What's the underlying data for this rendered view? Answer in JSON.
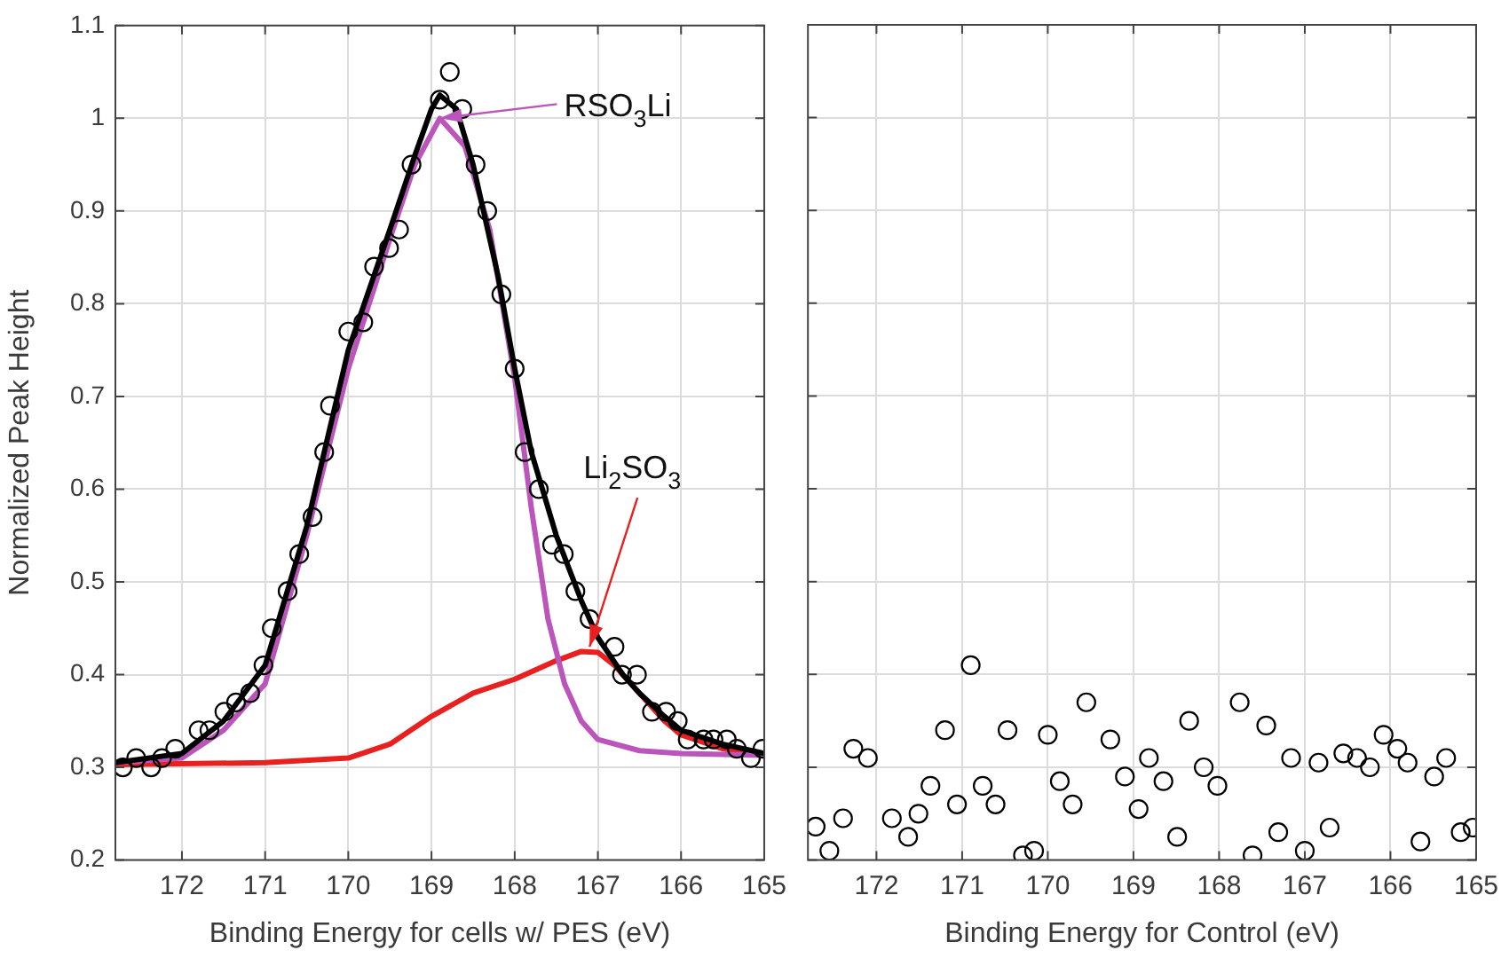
{
  "chart_data": [
    {
      "type": "scatter",
      "xlabel": "Binding Energy for cells w/ PES (eV)",
      "ylabel": "Normalized Peak Height",
      "xlim": [
        172.8,
        165
      ],
      "xticks": [
        172,
        171,
        170,
        169,
        168,
        167,
        166,
        165
      ],
      "ylim": [
        0.2,
        1.1
      ],
      "yticks": [
        0.2,
        0.3,
        0.4,
        0.5,
        0.6,
        0.7,
        0.8,
        0.9,
        1,
        1.1
      ],
      "grid": true,
      "annotations": [
        {
          "text": "RSO$_{3}$Li",
          "x": 168.9,
          "y": 1.0
        },
        {
          "text": "Li$_{2}$SO$_{3}$",
          "x": 167.1,
          "y": 0.43
        }
      ],
      "series": [
        {
          "type": "scatter",
          "marker": "circle",
          "color": "#000000",
          "x": [
            172.71,
            172.55,
            172.37,
            172.24,
            172.08,
            171.8,
            171.67,
            171.49,
            171.35,
            171.18,
            171.02,
            170.92,
            170.73,
            170.59,
            170.43,
            170.29,
            170.22,
            170.0,
            169.82,
            169.69,
            169.51,
            169.39,
            169.24,
            168.9,
            168.78,
            168.63,
            168.47,
            168.33,
            168.16,
            168.0,
            167.88,
            167.71,
            167.55,
            167.41,
            167.27,
            167.1,
            166.8,
            166.71,
            166.53,
            166.35,
            166.18,
            166.04,
            165.92,
            165.73,
            165.61,
            165.45,
            165.33,
            165.16,
            165.02
          ],
          "values": [
            0.3,
            0.31,
            0.3,
            0.31,
            0.32,
            0.34,
            0.34,
            0.36,
            0.37,
            0.38,
            0.41,
            0.45,
            0.49,
            0.53,
            0.57,
            0.64,
            0.69,
            0.77,
            0.78,
            0.84,
            0.86,
            0.88,
            0.95,
            1.02,
            1.05,
            1.01,
            0.95,
            0.9,
            0.81,
            0.73,
            0.64,
            0.6,
            0.54,
            0.53,
            0.49,
            0.46,
            0.43,
            0.4,
            0.4,
            0.36,
            0.36,
            0.35,
            0.33,
            0.33,
            0.33,
            0.33,
            0.32,
            0.31,
            0.32
          ]
        },
        {
          "type": "line",
          "marker": "none",
          "color": "#000000",
          "x": [
            172.8,
            172,
            171.5,
            171,
            170.5,
            170,
            169.5,
            169.2,
            169,
            168.9,
            168.7,
            168.5,
            168.2,
            168,
            167.8,
            167.5,
            167.2,
            167,
            166.7,
            166.5,
            166.2,
            166,
            165.5,
            165
          ],
          "values": [
            0.305,
            0.315,
            0.35,
            0.41,
            0.56,
            0.75,
            0.88,
            0.96,
            1.01,
            1.025,
            1.01,
            0.95,
            0.83,
            0.73,
            0.64,
            0.55,
            0.48,
            0.44,
            0.4,
            0.38,
            0.355,
            0.34,
            0.325,
            0.315
          ]
        },
        {
          "type": "line",
          "marker": "none",
          "color": "#bb55bb",
          "x": [
            172.8,
            172,
            171.5,
            171,
            170.5,
            170,
            169.5,
            169.2,
            168.9,
            168.6,
            168.3,
            168,
            167.8,
            167.6,
            167.4,
            167.2,
            167,
            166.5,
            166,
            165
          ],
          "values": [
            0.305,
            0.31,
            0.34,
            0.39,
            0.55,
            0.73,
            0.87,
            0.95,
            1.0,
            0.97,
            0.88,
            0.72,
            0.58,
            0.46,
            0.39,
            0.35,
            0.33,
            0.318,
            0.315,
            0.313
          ]
        },
        {
          "type": "line",
          "marker": "none",
          "color": "#e82020",
          "x": [
            172.8,
            171,
            170,
            169.5,
            169,
            168.5,
            168,
            167.5,
            167.2,
            167,
            166.8,
            166.5,
            166.2,
            166,
            165.5,
            165
          ],
          "values": [
            0.303,
            0.305,
            0.31,
            0.325,
            0.355,
            0.38,
            0.395,
            0.415,
            0.425,
            0.424,
            0.41,
            0.38,
            0.35,
            0.335,
            0.32,
            0.313
          ]
        }
      ]
    },
    {
      "type": "scatter",
      "xlabel": "Binding Energy for Control (eV)",
      "xlim": [
        172.8,
        165
      ],
      "xticks": [
        172,
        171,
        170,
        169,
        168,
        167,
        166,
        165
      ],
      "ylim": [
        0.2,
        1.1
      ],
      "yticks": [
        0.2,
        0.3,
        0.4,
        0.5,
        0.6,
        0.7,
        0.8,
        0.9,
        1,
        1.1
      ],
      "grid": true,
      "tick_labels": "x",
      "series": [
        {
          "type": "scatter",
          "marker": "circle",
          "color": "#000000",
          "x": [
            172.71,
            172.55,
            172.39,
            172.27,
            172.1,
            171.82,
            171.63,
            171.51,
            171.37,
            171.2,
            171.06,
            170.9,
            170.76,
            170.61,
            170.47,
            170.29,
            170.16,
            170.0,
            169.86,
            169.71,
            169.55,
            169.27,
            169.1,
            168.94,
            168.82,
            168.65,
            168.49,
            168.35,
            168.18,
            168.02,
            167.76,
            167.61,
            167.45,
            167.31,
            167.16,
            167.0,
            166.84,
            166.71,
            166.55,
            166.39,
            166.24,
            166.08,
            165.92,
            165.8,
            165.65,
            165.49,
            165.35,
            165.18,
            165.04
          ],
          "values": [
            0.236,
            0.21,
            0.245,
            0.32,
            0.31,
            0.245,
            0.225,
            0.25,
            0.28,
            0.34,
            0.26,
            0.41,
            0.28,
            0.26,
            0.34,
            0.205,
            0.21,
            0.335,
            0.285,
            0.26,
            0.37,
            0.33,
            0.29,
            0.255,
            0.31,
            0.285,
            0.225,
            0.35,
            0.3,
            0.28,
            0.37,
            0.205,
            0.345,
            0.23,
            0.31,
            0.21,
            0.305,
            0.235,
            0.315,
            0.31,
            0.3,
            0.335,
            0.32,
            0.305,
            0.22,
            0.29,
            0.31,
            0.23,
            0.235
          ]
        }
      ]
    }
  ]
}
